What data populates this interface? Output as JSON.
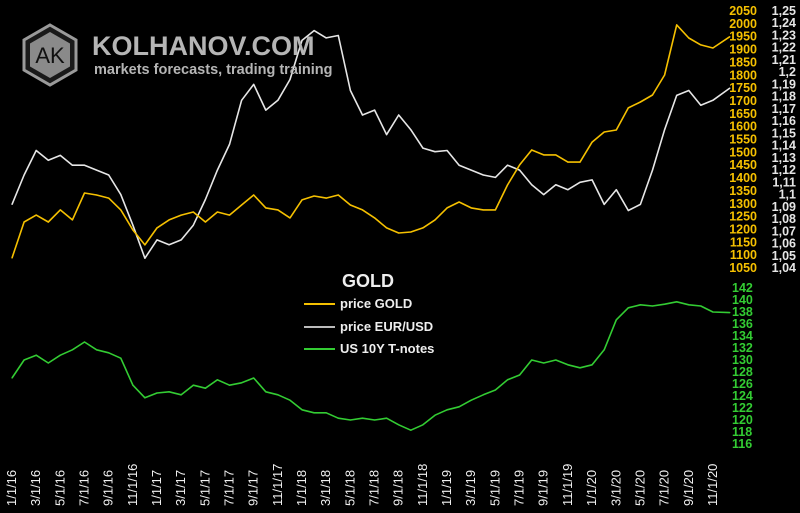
{
  "logo": {
    "monogram": "AK",
    "title": "KOLHANOV.COM",
    "subtitle": "markets forecasts, trading training"
  },
  "colors": {
    "gold": "#f5c000",
    "eurusd": "#e6e6e6",
    "tnotes": "#33cc33",
    "logo": "#b5b5b5",
    "background": "#000000"
  },
  "chart_data": {
    "type": "line",
    "title": "GOLD",
    "legend": {
      "placement": "center",
      "entries": [
        "price GOLD",
        "price EUR/USD",
        "US 10Y T-notes"
      ]
    },
    "x_tick_labels": [
      "1/1/16",
      "3/1/16",
      "5/1/16",
      "7/1/16",
      "9/1/16",
      "11/1/16",
      "1/1/17",
      "3/1/17",
      "5/1/17",
      "7/1/17",
      "9/1/17",
      "11/1/17",
      "1/1/18",
      "3/1/18",
      "5/1/18",
      "7/1/18",
      "9/1/18",
      "11/1/18",
      "1/1/19",
      "3/1/19",
      "5/1/19",
      "7/1/19",
      "9/1/19",
      "11/1/19",
      "1/1/20",
      "3/1/20",
      "5/1/20",
      "7/1/20",
      "9/1/20",
      "11/1/20"
    ],
    "x_months_from_jan2016": [
      0,
      1,
      2,
      3,
      4,
      5,
      6,
      7,
      8,
      9,
      10,
      11,
      12,
      13,
      14,
      15,
      16,
      17,
      18,
      19,
      20,
      21,
      22,
      23,
      24,
      25,
      26,
      27,
      28,
      29,
      30,
      31,
      32,
      33,
      34,
      35,
      36,
      37,
      38,
      39,
      40,
      41,
      42,
      43,
      44,
      45,
      46,
      47,
      48,
      49,
      50,
      51,
      52,
      53,
      54,
      55,
      56,
      57,
      58,
      59.4
    ],
    "series": [
      {
        "name": "price GOLD",
        "axis": "right-1",
        "ylim": [
          1050,
          2050
        ],
        "y_tick_labels": [
          "2050",
          "2000",
          "1950",
          "1900",
          "1850",
          "1800",
          "1750",
          "1700",
          "1650",
          "1600",
          "1550",
          "1500",
          "1450",
          "1400",
          "1350",
          "1300",
          "1250",
          "1200",
          "1150",
          "1100",
          "1050"
        ],
        "values": [
          1089,
          1229,
          1256,
          1229,
          1276,
          1237,
          1342,
          1334,
          1322,
          1276,
          1198,
          1140,
          1206,
          1237,
          1256,
          1268,
          1229,
          1268,
          1256,
          1295,
          1334,
          1284,
          1276,
          1245,
          1315,
          1330,
          1322,
          1334,
          1295,
          1276,
          1245,
          1206,
          1186,
          1190,
          1206,
          1237,
          1284,
          1307,
          1284,
          1276,
          1276,
          1373,
          1451,
          1509,
          1490,
          1490,
          1462,
          1462,
          1540,
          1579,
          1587,
          1673,
          1696,
          1723,
          1801,
          1996,
          1945,
          1918,
          1906,
          1950
        ]
      },
      {
        "name": "price EUR/USD",
        "axis": "right-2",
        "ylim": [
          1.04,
          1.25
        ],
        "y_tick_labels": [
          "1,25",
          "1,24",
          "1,23",
          "1,22",
          "1,21",
          "1,2",
          "1,19",
          "1,18",
          "1,17",
          "1,16",
          "1,15",
          "1,14",
          "1,13",
          "1,12",
          "1,11",
          "1,1",
          "1,09",
          "1,08",
          "1,07",
          "1,06",
          "1,05",
          "1,04"
        ],
        "values": [
          1.092,
          1.116,
          1.136,
          1.128,
          1.132,
          1.124,
          1.124,
          1.12,
          1.116,
          1.1,
          1.075,
          1.048,
          1.063,
          1.059,
          1.063,
          1.075,
          1.096,
          1.12,
          1.141,
          1.177,
          1.19,
          1.169,
          1.177,
          1.194,
          1.226,
          1.234,
          1.228,
          1.23,
          1.185,
          1.165,
          1.169,
          1.149,
          1.165,
          1.153,
          1.138,
          1.135,
          1.136,
          1.124,
          1.12,
          1.116,
          1.114,
          1.124,
          1.12,
          1.108,
          1.1,
          1.108,
          1.104,
          1.11,
          1.112,
          1.092,
          1.104,
          1.087,
          1.092,
          1.12,
          1.153,
          1.181,
          1.185,
          1.173,
          1.177,
          1.187
        ]
      },
      {
        "name": "US 10Y T-notes",
        "axis": "right-lower",
        "ylim": [
          116,
          142
        ],
        "y_tick_labels": [
          "142",
          "140",
          "138",
          "136",
          "134",
          "132",
          "130",
          "128",
          "126",
          "124",
          "122",
          "120",
          "118",
          "116"
        ],
        "values": [
          127,
          130,
          130.8,
          129.5,
          130.8,
          131.7,
          133,
          131.7,
          131.2,
          130.3,
          125.8,
          123.7,
          124.5,
          124.7,
          124.2,
          125.8,
          125.3,
          126.7,
          125.8,
          126.2,
          127,
          124.7,
          124.2,
          123.3,
          121.7,
          121.2,
          121.2,
          120.3,
          120,
          120.3,
          120,
          120.3,
          119.2,
          118.3,
          119.2,
          120.8,
          121.7,
          122.2,
          123.3,
          124.2,
          125,
          126.7,
          127.5,
          130,
          129.5,
          130,
          129.2,
          128.7,
          129.2,
          131.7,
          136.7,
          138.7,
          139.2,
          139,
          139.3,
          139.7,
          139.2,
          139,
          138,
          137.9
        ]
      }
    ],
    "grid": false
  }
}
